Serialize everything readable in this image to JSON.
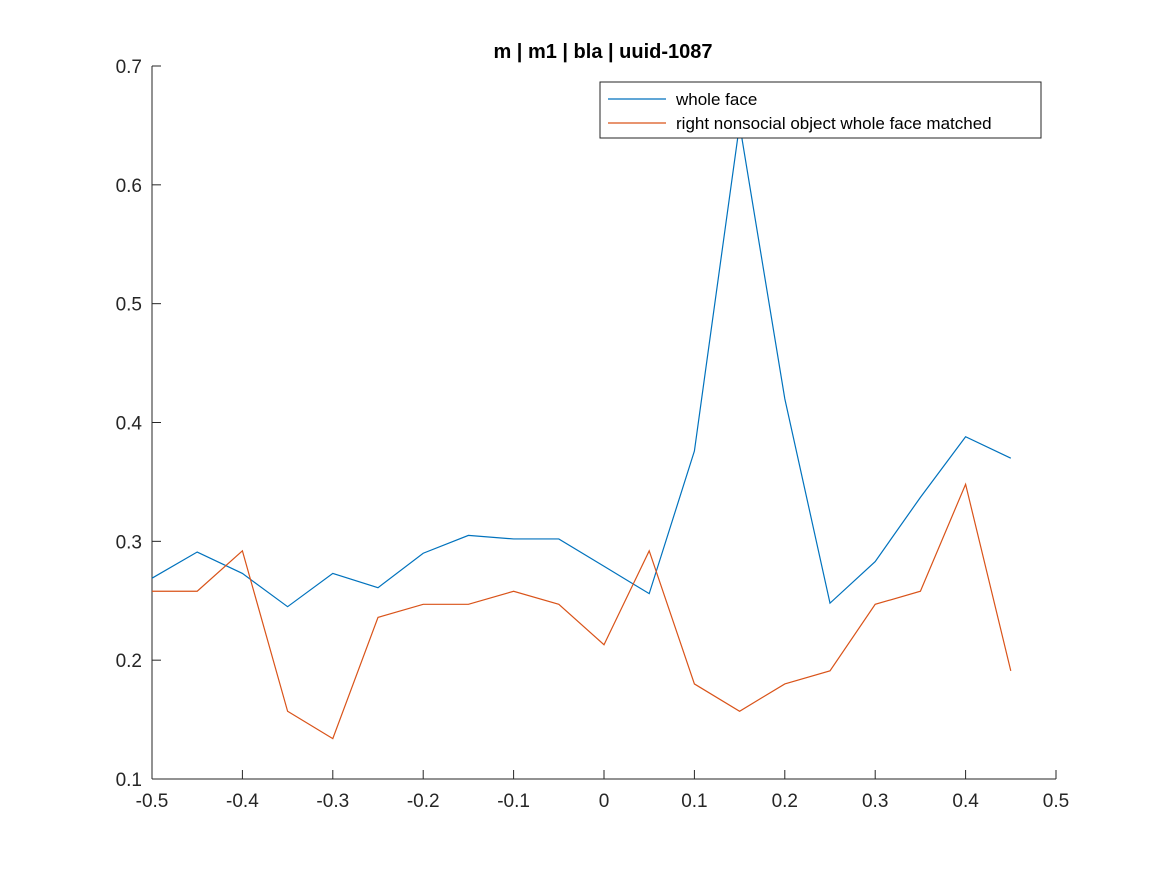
{
  "chart_data": {
    "type": "line",
    "title": "m | m1 | bla | uuid-1087",
    "xlabel": "",
    "ylabel": "",
    "xlim": [
      -0.5,
      0.5
    ],
    "ylim": [
      0.1,
      0.7
    ],
    "xticks": [
      -0.5,
      -0.4,
      -0.3,
      -0.2,
      -0.1,
      0,
      0.1,
      0.2,
      0.3,
      0.4,
      0.5
    ],
    "xtick_labels": [
      "-0.5",
      "-0.4",
      "-0.3",
      "-0.2",
      "-0.1",
      "0",
      "0.1",
      "0.2",
      "0.3",
      "0.4",
      "0.5"
    ],
    "yticks": [
      0.1,
      0.2,
      0.3,
      0.4,
      0.5,
      0.6,
      0.7
    ],
    "ytick_labels": [
      "0.1",
      "0.2",
      "0.3",
      "0.4",
      "0.5",
      "0.6",
      "0.7"
    ],
    "grid": false,
    "legend_position": "top-right",
    "x": [
      -0.5,
      -0.45,
      -0.4,
      -0.35,
      -0.3,
      -0.25,
      -0.2,
      -0.15,
      -0.1,
      -0.05,
      0,
      0.05,
      0.1,
      0.15,
      0.2,
      0.25,
      0.3,
      0.35,
      0.4,
      0.45
    ],
    "series": [
      {
        "name": "whole face",
        "color": "#0072BD",
        "values": [
          0.269,
          0.291,
          0.273,
          0.245,
          0.273,
          0.261,
          0.29,
          0.305,
          0.302,
          0.302,
          0.279,
          0.256,
          0.376,
          0.651,
          0.42,
          0.248,
          0.283,
          0.337,
          0.388,
          0.37
        ]
      },
      {
        "name": "right nonsocial object whole face matched",
        "color": "#D95319",
        "values": [
          0.258,
          0.258,
          0.292,
          0.157,
          0.134,
          0.236,
          0.247,
          0.247,
          0.258,
          0.247,
          0.213,
          0.292,
          0.18,
          0.157,
          0.18,
          0.191,
          0.247,
          0.258,
          0.348,
          0.191
        ]
      }
    ]
  }
}
